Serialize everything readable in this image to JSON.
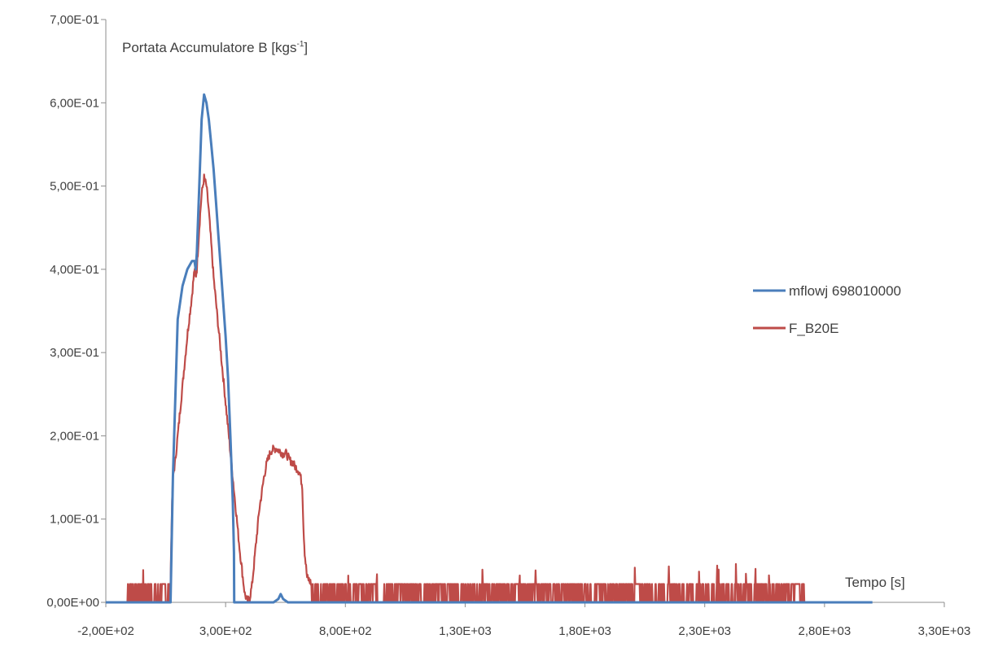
{
  "chart_data": {
    "type": "line",
    "title": "Portata Accumulatore B [kgs",
    "title_sup": "-1",
    "title_close": "]",
    "xlabel": "Tempo [s]",
    "ylabel": "",
    "xlim": [
      -200,
      3300
    ],
    "ylim": [
      0,
      0.7
    ],
    "x_ticks": [
      -200,
      300,
      800,
      1300,
      1800,
      2300,
      2800,
      3300
    ],
    "x_tick_labels": [
      "-2,00E+02",
      "3,00E+02",
      "8,00E+02",
      "1,30E+03",
      "1,80E+03",
      "2,30E+03",
      "2,80E+03",
      "3,30E+03"
    ],
    "y_ticks": [
      0,
      0.1,
      0.2,
      0.3,
      0.4,
      0.5,
      0.6,
      0.7
    ],
    "y_tick_labels": [
      "0,00E+00",
      "1,00E-01",
      "2,00E-01",
      "3,00E-01",
      "4,00E-01",
      "5,00E-01",
      "6,00E-01",
      "7,00E-01"
    ],
    "grid": false,
    "legend_position": "right",
    "series": [
      {
        "name": "mflowj  698010000",
        "color": "#4a7ebb",
        "x": [
          -200,
          0,
          70,
          80,
          100,
          120,
          140,
          160,
          170,
          175,
          180,
          190,
          200,
          210,
          220,
          230,
          240,
          250,
          260,
          270,
          280,
          290,
          300,
          310,
          320,
          330,
          335,
          336,
          340,
          380,
          450,
          500,
          520,
          530,
          540,
          560,
          580,
          620,
          3000
        ],
        "y": [
          0,
          0,
          0,
          0.15,
          0.34,
          0.38,
          0.4,
          0.41,
          0.41,
          0.4,
          0.42,
          0.5,
          0.58,
          0.61,
          0.6,
          0.58,
          0.55,
          0.52,
          0.48,
          0.44,
          0.4,
          0.36,
          0.32,
          0.27,
          0.2,
          0.12,
          0.06,
          0.0,
          0,
          0,
          0,
          0,
          0.004,
          0.01,
          0.004,
          0,
          0,
          0,
          0
        ]
      },
      {
        "name": "F_B20E",
        "color": "#be4b48",
        "noise": true,
        "noise_baseline": 0.022,
        "noise_end": 2720,
        "x": [
          -110,
          -80,
          -40,
          0,
          40,
          70,
          75,
          80,
          90,
          100,
          120,
          140,
          160,
          170,
          175,
          180,
          190,
          200,
          210,
          220,
          230,
          240,
          250,
          260,
          270,
          280,
          290,
          300,
          310,
          320,
          330,
          340,
          350,
          360,
          370,
          380,
          390,
          400,
          410,
          420,
          430,
          440,
          450,
          460,
          470,
          480,
          490,
          500,
          510,
          520,
          530,
          540,
          550,
          560,
          570,
          580,
          590,
          600,
          610,
          620,
          625,
          630,
          640,
          660,
          2720
        ],
        "y": [
          0.022,
          0.022,
          0.022,
          0.022,
          0.022,
          0.02,
          0.1,
          0.15,
          0.17,
          0.2,
          0.26,
          0.32,
          0.37,
          0.4,
          0.39,
          0.4,
          0.45,
          0.49,
          0.51,
          0.5,
          0.47,
          0.43,
          0.39,
          0.36,
          0.33,
          0.3,
          0.27,
          0.24,
          0.21,
          0.18,
          0.15,
          0.12,
          0.09,
          0.06,
          0.035,
          0.01,
          0.002,
          0.004,
          0.02,
          0.05,
          0.08,
          0.11,
          0.13,
          0.15,
          0.165,
          0.175,
          0.182,
          0.184,
          0.185,
          0.183,
          0.181,
          0.178,
          0.18,
          0.175,
          0.17,
          0.168,
          0.163,
          0.16,
          0.155,
          0.14,
          0.09,
          0.06,
          0.03,
          0.022,
          0.022
        ]
      }
    ]
  }
}
